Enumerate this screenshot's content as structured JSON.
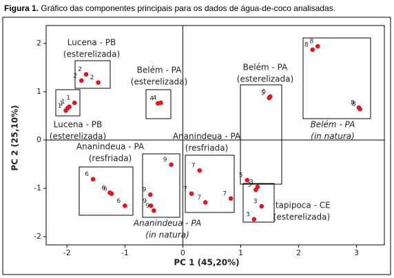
{
  "caption": {
    "label": "Figura 1.",
    "text": "Gráfico das componentes principais para os dados de água-de-coco analisadas."
  },
  "chart_data": {
    "type": "scatter",
    "xlabel": "PC 1 (45,20%)",
    "ylabel": "PC 2 (25,10%)",
    "xlim": [
      -2.36,
      3.48
    ],
    "ylim": [
      -2.17,
      2.37
    ],
    "xticks": [
      -2,
      -1,
      0,
      1,
      2,
      3
    ],
    "yticks": [
      -2,
      -1,
      0,
      1,
      2
    ],
    "reference_lines": true,
    "series": [
      {
        "name": "1",
        "color": "#e8141c",
        "x": [
          -2.02,
          -1.99,
          -1.96,
          -1.87
        ],
        "y": [
          0.61,
          0.66,
          0.69,
          0.77
        ]
      },
      {
        "name": "2",
        "color": "#e8141c",
        "x": [
          -1.75,
          -1.67,
          -1.46
        ],
        "y": [
          1.23,
          1.36,
          1.19
        ]
      },
      {
        "name": "4",
        "color": "#e8141c",
        "x": [
          -0.43,
          -0.38
        ],
        "y": [
          0.76,
          0.77
        ]
      },
      {
        "name": "5",
        "color": "#e8141c",
        "x": [
          1.11,
          1.49,
          1.51
        ],
        "y": [
          -0.83,
          0.87,
          0.9
        ]
      },
      {
        "name": "8",
        "color": "#e8141c",
        "x": [
          2.24,
          2.33,
          3.04,
          3.06
        ],
        "y": [
          1.87,
          1.94,
          0.67,
          0.64
        ]
      },
      {
        "name": "3",
        "color": "#e8141c",
        "x": [
          1.29,
          1.26,
          1.36,
          1.23
        ],
        "y": [
          -0.97,
          -1.03,
          -1.37,
          -1.64
        ]
      },
      {
        "name": "6",
        "color": "#e8141c",
        "x": [
          -1.55,
          -1.23,
          -1.26,
          -1.0
        ],
        "y": [
          -0.81,
          -1.11,
          -1.09,
          -1.36
        ]
      },
      {
        "name": "9",
        "color": "#e8141c",
        "x": [
          -0.2,
          -0.56,
          -0.55,
          -0.5
        ],
        "y": [
          -0.51,
          -1.13,
          -1.36,
          -1.46
        ]
      },
      {
        "name": "7",
        "color": "#e8141c",
        "x": [
          0.29,
          0.15,
          0.39,
          0.83
        ],
        "y": [
          -0.63,
          -1.11,
          -1.29,
          -1.21
        ]
      }
    ],
    "annotations": [
      [
        "Lucena - PB",
        "(esterelizada)"
      ],
      [
        "Lucena - PB",
        "(esterelizada)"
      ],
      [
        "Belém - PA",
        "(esterelizada)"
      ],
      [
        "Belém - PA",
        "(esterelizada)"
      ],
      [
        "Belém - PA",
        "(in natura)"
      ],
      [
        "Ananindeua - PA",
        "(resfriada)"
      ],
      [
        "Ananindeua - PA",
        "(resfriada)"
      ],
      [
        "Ananindeua - PA",
        "(in natura)"
      ],
      [
        "Itapipoca - CE",
        "(esterelizada)"
      ]
    ]
  }
}
